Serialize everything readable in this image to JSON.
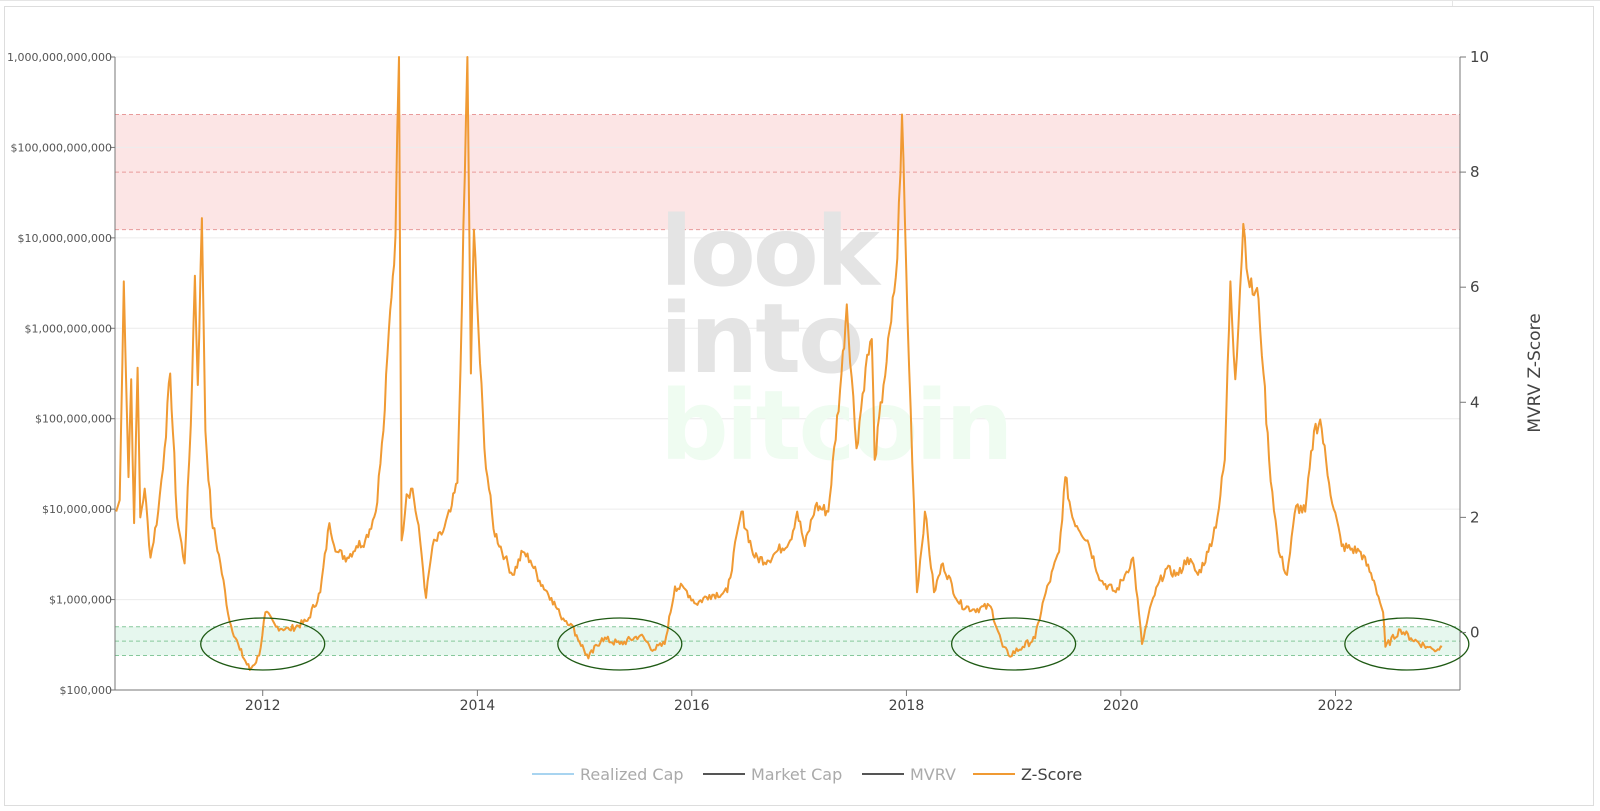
{
  "chart_data": {
    "type": "line",
    "title": "",
    "xlabel": "",
    "y_left": {
      "scale": "log",
      "range": [
        100000,
        1000000000000
      ],
      "tick_values": [
        100000,
        1000000,
        10000000,
        100000000,
        1000000000,
        10000000000,
        100000000000,
        1000000000000
      ],
      "tick_labels": [
        "$100,000",
        "$1,000,000",
        "$10,000,000",
        "$100,000,000",
        "$1,000,000,000",
        "$10,000,000,000",
        "$100,000,000,000",
        "1,000,000,000,000"
      ]
    },
    "y_right": {
      "label": "MVRV Z-Score",
      "range": [
        -1,
        10
      ],
      "tick_values": [
        0,
        2,
        4,
        6,
        8,
        10
      ],
      "tick_labels": [
        "0",
        "2",
        "4",
        "6",
        "8",
        "10"
      ]
    },
    "x_axis": {
      "range": [
        "2010-08-16",
        "2023-03-01"
      ],
      "tick_labels": [
        "2012",
        "2014",
        "2016",
        "2018",
        "2020",
        "2022"
      ]
    },
    "grid": true,
    "zones": [
      {
        "name": "overvalued",
        "from": 7,
        "to": 9,
        "color": "#fce5e5",
        "line_color": "#e89a9a"
      },
      {
        "name": "undervalued",
        "from": -0.4,
        "to": 0.1,
        "color": "#e6f7ee",
        "line_color": "#86c89b"
      }
    ],
    "highlight_circles": [
      "2012-01-01",
      "2015-05-01",
      "2019-01-01",
      "2022-09-01"
    ],
    "legend_position": "bottom-center",
    "watermark": [
      "look",
      "into",
      "bitcoin"
    ],
    "series": [
      {
        "name": "Realized Cap",
        "color": "#a8d4f0",
        "visible": false,
        "values": []
      },
      {
        "name": "Market Cap",
        "color": "#555555",
        "visible": false,
        "values": []
      },
      {
        "name": "MVRV",
        "color": "#555555",
        "visible": false,
        "values": []
      },
      {
        "name": "Z-Score",
        "color": "#f09a33",
        "visible": true,
        "points": [
          [
            "2010-08-20",
            2.1
          ],
          [
            "2010-09-01",
            2.3
          ],
          [
            "2010-09-15",
            6.1
          ],
          [
            "2010-10-01",
            2.7
          ],
          [
            "2010-10-10",
            4.4
          ],
          [
            "2010-10-20",
            1.9
          ],
          [
            "2010-11-01",
            4.6
          ],
          [
            "2010-11-10",
            2.0
          ],
          [
            "2010-11-25",
            2.5
          ],
          [
            "2010-12-15",
            1.3
          ],
          [
            "2011-01-10",
            2.1
          ],
          [
            "2011-02-01",
            3.2
          ],
          [
            "2011-02-20",
            4.5
          ],
          [
            "2011-03-15",
            2.0
          ],
          [
            "2011-04-10",
            1.2
          ],
          [
            "2011-05-01",
            3.6
          ],
          [
            "2011-05-15",
            6.2
          ],
          [
            "2011-05-25",
            4.3
          ],
          [
            "2011-06-08",
            7.2
          ],
          [
            "2011-06-20",
            3.5
          ],
          [
            "2011-07-10",
            2.0
          ],
          [
            "2011-08-10",
            1.2
          ],
          [
            "2011-09-10",
            0.2
          ],
          [
            "2011-10-15",
            -0.3
          ],
          [
            "2011-11-18",
            -0.65
          ],
          [
            "2011-12-20",
            -0.4
          ],
          [
            "2012-01-10",
            0.35
          ],
          [
            "2012-02-15",
            0.1
          ],
          [
            "2012-04-01",
            0.05
          ],
          [
            "2012-06-01",
            0.2
          ],
          [
            "2012-07-15",
            0.7
          ],
          [
            "2012-08-15",
            1.9
          ],
          [
            "2012-09-10",
            1.4
          ],
          [
            "2012-10-15",
            1.3
          ],
          [
            "2012-11-15",
            1.5
          ],
          [
            "2012-12-15",
            1.6
          ],
          [
            "2013-01-20",
            2.1
          ],
          [
            "2013-02-15",
            3.5
          ],
          [
            "2013-03-10",
            5.6
          ],
          [
            "2013-03-28",
            6.9
          ],
          [
            "2013-04-09",
            10.0
          ],
          [
            "2013-04-18",
            1.6
          ],
          [
            "2013-05-05",
            2.4
          ],
          [
            "2013-05-25",
            2.5
          ],
          [
            "2013-06-20",
            1.6
          ],
          [
            "2013-07-10",
            0.6
          ],
          [
            "2013-08-01",
            1.5
          ],
          [
            "2013-09-01",
            1.7
          ],
          [
            "2013-10-01",
            2.1
          ],
          [
            "2013-10-25",
            2.6
          ],
          [
            "2013-11-10",
            5.8
          ],
          [
            "2013-11-28",
            10.0
          ],
          [
            "2013-12-10",
            4.5
          ],
          [
            "2013-12-20",
            7.0
          ],
          [
            "2014-01-05",
            5.2
          ],
          [
            "2014-01-25",
            3.2
          ],
          [
            "2014-02-25",
            1.8
          ],
          [
            "2014-04-05",
            1.3
          ],
          [
            "2014-05-01",
            1.0
          ],
          [
            "2014-06-05",
            1.4
          ],
          [
            "2014-07-01",
            1.25
          ],
          [
            "2014-08-01",
            0.9
          ],
          [
            "2014-09-10",
            0.6
          ],
          [
            "2014-10-10",
            0.3
          ],
          [
            "2014-11-15",
            0.15
          ],
          [
            "2015-01-14",
            -0.45
          ],
          [
            "2015-03-01",
            -0.1
          ],
          [
            "2015-05-01",
            -0.2
          ],
          [
            "2015-07-10",
            -0.05
          ],
          [
            "2015-08-25",
            -0.3
          ],
          [
            "2015-10-01",
            -0.2
          ],
          [
            "2015-11-05",
            0.8
          ],
          [
            "2015-12-10",
            0.75
          ],
          [
            "2016-01-15",
            0.5
          ],
          [
            "2016-03-01",
            0.65
          ],
          [
            "2016-05-01",
            0.7
          ],
          [
            "2016-06-18",
            2.1
          ],
          [
            "2016-08-02",
            1.3
          ],
          [
            "2016-09-15",
            1.25
          ],
          [
            "2016-10-15",
            1.4
          ],
          [
            "2016-12-01",
            1.6
          ],
          [
            "2016-12-25",
            2.1
          ],
          [
            "2017-01-20",
            1.5
          ],
          [
            "2017-02-25",
            2.2
          ],
          [
            "2017-04-10",
            2.1
          ],
          [
            "2017-05-25",
            4.5
          ],
          [
            "2017-06-12",
            5.7
          ],
          [
            "2017-07-15",
            3.2
          ],
          [
            "2017-08-15",
            4.6
          ],
          [
            "2017-09-05",
            5.1
          ],
          [
            "2017-09-15",
            3.0
          ],
          [
            "2017-10-15",
            4.3
          ],
          [
            "2017-11-10",
            5.4
          ],
          [
            "2017-12-01",
            6.5
          ],
          [
            "2017-12-17",
            9.0
          ],
          [
            "2018-01-05",
            5.4
          ],
          [
            "2018-02-06",
            0.7
          ],
          [
            "2018-03-05",
            2.1
          ],
          [
            "2018-04-05",
            0.7
          ],
          [
            "2018-05-05",
            1.2
          ],
          [
            "2018-06-30",
            0.5
          ],
          [
            "2018-08-15",
            0.4
          ],
          [
            "2018-10-15",
            0.45
          ],
          [
            "2018-11-25",
            -0.25
          ],
          [
            "2018-12-15",
            -0.4
          ],
          [
            "2019-02-01",
            -0.25
          ],
          [
            "2019-03-15",
            -0.1
          ],
          [
            "2019-04-15",
            0.6
          ],
          [
            "2019-06-05",
            1.4
          ],
          [
            "2019-06-26",
            2.7
          ],
          [
            "2019-07-20",
            2.0
          ],
          [
            "2019-09-10",
            1.6
          ],
          [
            "2019-10-25",
            0.9
          ],
          [
            "2019-12-15",
            0.7
          ],
          [
            "2020-01-15",
            1.0
          ],
          [
            "2020-02-12",
            1.3
          ],
          [
            "2020-03-13",
            -0.2
          ],
          [
            "2020-04-20",
            0.6
          ],
          [
            "2020-06-01",
            1.1
          ],
          [
            "2020-07-15",
            1.0
          ],
          [
            "2020-08-15",
            1.3
          ],
          [
            "2020-09-20",
            1.0
          ],
          [
            "2020-10-25",
            1.4
          ],
          [
            "2020-11-25",
            2.0
          ],
          [
            "2020-12-20",
            3.0
          ],
          [
            "2021-01-08",
            6.1
          ],
          [
            "2021-01-25",
            4.4
          ],
          [
            "2021-02-21",
            7.1
          ],
          [
            "2021-03-15",
            6.0
          ],
          [
            "2021-04-14",
            5.8
          ],
          [
            "2021-05-01",
            4.5
          ],
          [
            "2021-05-20",
            3.0
          ],
          [
            "2021-06-22",
            1.4
          ],
          [
            "2021-07-20",
            1.0
          ],
          [
            "2021-08-20",
            2.2
          ],
          [
            "2021-09-20",
            2.1
          ],
          [
            "2021-10-20",
            3.5
          ],
          [
            "2021-11-10",
            3.7
          ],
          [
            "2021-12-10",
            2.6
          ],
          [
            "2022-01-22",
            1.5
          ],
          [
            "2022-03-28",
            1.4
          ],
          [
            "2022-05-12",
            0.9
          ],
          [
            "2022-06-12",
            0.35
          ],
          [
            "2022-06-20",
            -0.25
          ],
          [
            "2022-08-10",
            0.05
          ],
          [
            "2022-09-15",
            -0.1
          ],
          [
            "2022-11-09",
            -0.25
          ],
          [
            "2022-12-01",
            -0.3
          ],
          [
            "2022-12-30",
            -0.25
          ]
        ]
      }
    ]
  }
}
